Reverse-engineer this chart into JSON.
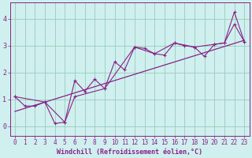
{
  "xlabel": "Windchill (Refroidissement éolien,°C)",
  "ylabel": "",
  "xlim": [
    -0.5,
    23.5
  ],
  "ylim": [
    -0.35,
    4.6
  ],
  "xticks": [
    0,
    1,
    2,
    3,
    4,
    5,
    6,
    7,
    8,
    9,
    10,
    11,
    12,
    13,
    14,
    15,
    16,
    17,
    18,
    19,
    20,
    21,
    22,
    23
  ],
  "yticks": [
    0,
    1,
    2,
    3,
    4
  ],
  "background_color": "#cff0ee",
  "grid_color": "#99ccbb",
  "line_color": "#882288",
  "series1_x": [
    0,
    1,
    2,
    3,
    4,
    5,
    6,
    7,
    8,
    9,
    10,
    11,
    12,
    13,
    14,
    15,
    16,
    17,
    18,
    19,
    20,
    21,
    22,
    23
  ],
  "series1_y": [
    1.1,
    0.75,
    0.75,
    0.9,
    0.1,
    0.15,
    1.7,
    1.3,
    1.75,
    1.4,
    2.4,
    2.1,
    2.95,
    2.9,
    2.7,
    2.65,
    3.1,
    3.0,
    2.95,
    2.6,
    3.05,
    3.1,
    3.8,
    3.15
  ],
  "series2_x": [
    0,
    3,
    5,
    6,
    9,
    12,
    14,
    16,
    18,
    20,
    21,
    22,
    23
  ],
  "series2_y": [
    1.1,
    0.9,
    0.15,
    1.1,
    1.4,
    2.95,
    2.7,
    3.1,
    2.95,
    3.05,
    3.1,
    4.25,
    3.15
  ],
  "trend_x": [
    0,
    23
  ],
  "trend_y": [
    0.55,
    3.2
  ],
  "font_size_label": 6,
  "font_size_tick": 5.5,
  "marker_size": 3
}
